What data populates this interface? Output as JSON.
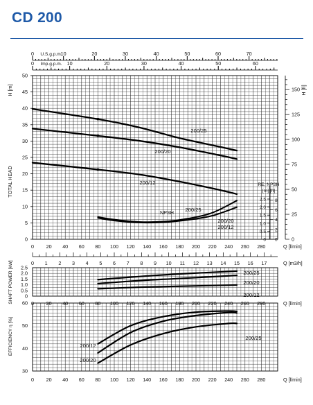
{
  "title": "CD 200",
  "accent_color": "#1f5aa8",
  "chart_data": [
    {
      "type": "line",
      "name": "head",
      "ylabel_left": "H [m]",
      "ylabel_right": "H [ft]",
      "side_label": "TOTAL HEAD",
      "xlabel": "Q [l/min]",
      "x_ticks": [
        0,
        20,
        40,
        60,
        80,
        100,
        120,
        140,
        160,
        180,
        200,
        220,
        240,
        260,
        280
      ],
      "xlim": [
        0,
        300
      ],
      "ylim": [
        0,
        50
      ],
      "y_ticks": [
        0,
        5,
        10,
        15,
        20,
        25,
        30,
        35,
        40,
        45,
        50
      ],
      "ft_ticks": [
        0,
        25,
        50,
        75,
        100,
        125,
        150
      ],
      "top_axis_us": {
        "label": "U.S.g.p.m.",
        "ticks": [
          0,
          10,
          20,
          30,
          40,
          50,
          60,
          70
        ]
      },
      "top_axis_imp": {
        "label": "Imp.g.p.m.",
        "ticks": [
          0,
          10,
          20,
          30,
          40,
          50,
          60
        ]
      },
      "npsh_axis": {
        "label": "RE. NPSH",
        "units": "[m] [ft]",
        "m_ticks": [
          0,
          0.5,
          1.0,
          1.5,
          2.0,
          2.5
        ],
        "ft_ticks": [
          0,
          2,
          4,
          6,
          8
        ]
      },
      "series": [
        {
          "name": "200/25",
          "x": [
            0,
            80,
            130,
            180,
            230,
            250
          ],
          "y": [
            39.8,
            36.7,
            34.2,
            30.9,
            28.2,
            27.1
          ]
        },
        {
          "name": "200/20",
          "x": [
            0,
            80,
            130,
            180,
            230,
            250
          ],
          "y": [
            33.8,
            31.6,
            30.1,
            28.1,
            25.6,
            24.5
          ]
        },
        {
          "name": "200/12",
          "x": [
            0,
            80,
            130,
            180,
            230,
            250
          ],
          "y": [
            23.4,
            21.3,
            19.8,
            17.6,
            15.0,
            13.8
          ]
        },
        {
          "name": "NPSH",
          "x": [
            80,
            100,
            130,
            160,
            190,
            220,
            250
          ],
          "y": [
            6.8,
            6.0,
            5.3,
            5.4,
            6.3,
            8.1,
            11.8
          ]
        },
        {
          "name": "NPSH-2",
          "x": [
            80,
            100,
            130,
            160,
            190,
            220,
            250
          ],
          "y": [
            6.5,
            5.7,
            5.1,
            5.2,
            5.9,
            7.2,
            9.8
          ]
        }
      ],
      "curve_labels": [
        "200/25",
        "200/20",
        "200/12",
        "NPSH",
        "200/25",
        "200/20",
        "200/12"
      ]
    },
    {
      "type": "line",
      "name": "flow-m3h",
      "xlabel": "Q [m3/h]",
      "x_ticks": [
        0,
        1,
        2,
        3,
        4,
        5,
        6,
        7,
        8,
        9,
        10,
        11,
        12,
        13,
        14,
        15,
        16,
        17
      ]
    },
    {
      "type": "line",
      "name": "power",
      "ylabel": "SHAFT POWER [kW]",
      "xlabel": "Q [l/min]",
      "ylim": [
        0,
        2.5
      ],
      "y_ticks": [
        0,
        0.5,
        1.0,
        1.5,
        2.0,
        2.5
      ],
      "x_ticks": [
        0,
        20,
        40,
        60,
        80,
        100,
        120,
        140,
        160,
        180,
        200,
        220,
        240,
        260,
        280
      ],
      "series": [
        {
          "name": "200/25",
          "x": [
            80,
            130,
            180,
            250
          ],
          "y": [
            1.45,
            1.72,
            1.95,
            2.2
          ]
        },
        {
          "name": "200/20",
          "x": [
            80,
            130,
            180,
            250
          ],
          "y": [
            1.1,
            1.36,
            1.55,
            1.82
          ]
        },
        {
          "name": "200/12",
          "x": [
            80,
            130,
            180,
            250
          ],
          "y": [
            0.65,
            0.78,
            0.87,
            0.98
          ]
        }
      ]
    },
    {
      "type": "line",
      "name": "efficiency",
      "ylabel": "EFFICIENCY η [%]",
      "xlabel": "Q [l/min]",
      "ylim": [
        30,
        60
      ],
      "y_ticks": [
        30,
        40,
        50,
        60
      ],
      "x_ticks": [
        0,
        20,
        40,
        60,
        80,
        100,
        120,
        140,
        160,
        180,
        200,
        220,
        240,
        260,
        280
      ],
      "series": [
        {
          "name": "200/12",
          "x": [
            80,
            120,
            160,
            200,
            240,
            250
          ],
          "y": [
            42,
            50,
            54,
            56,
            56.5,
            56.3
          ]
        },
        {
          "name": "200/20",
          "x": [
            80,
            120,
            160,
            200,
            240,
            250
          ],
          "y": [
            38,
            47,
            52,
            54.5,
            55.8,
            55.6
          ]
        },
        {
          "name": "200/25",
          "x": [
            80,
            120,
            160,
            200,
            240,
            250
          ],
          "y": [
            33.5,
            41.5,
            46.5,
            49.5,
            51,
            51
          ]
        }
      ]
    }
  ]
}
